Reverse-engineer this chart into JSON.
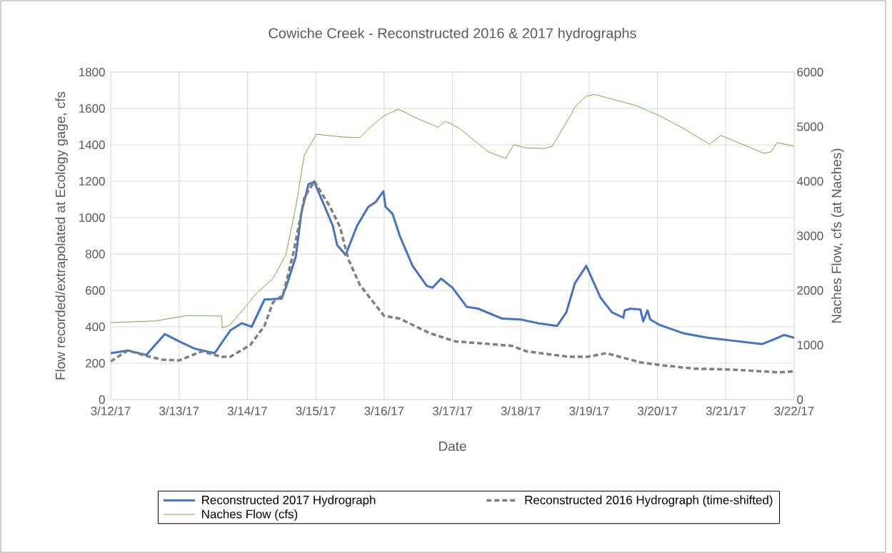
{
  "chart_data": {
    "type": "line",
    "title": "Cowiche Creek - Reconstructed 2016 & 2017 hydrographs",
    "xlabel": "Date",
    "ylabel": "Flow recorded/extrapolated at Ecology gage, cfs",
    "y2label": "Naches Flow, cfs (at Naches)",
    "xlim": [
      "2017-03-12",
      "2017-03-22"
    ],
    "xticks": [
      {
        "value": "2017-03-12",
        "label": "3/12/17"
      },
      {
        "value": "2017-03-13",
        "label": "3/13/17"
      },
      {
        "value": "2017-03-14",
        "label": "3/14/17"
      },
      {
        "value": "2017-03-15",
        "label": "3/15/17"
      },
      {
        "value": "2017-03-16",
        "label": "3/16/17"
      },
      {
        "value": "2017-03-17",
        "label": "3/17/17"
      },
      {
        "value": "2017-03-18",
        "label": "3/18/17"
      },
      {
        "value": "2017-03-19",
        "label": "3/19/17"
      },
      {
        "value": "2017-03-20",
        "label": "3/20/17"
      },
      {
        "value": "2017-03-21",
        "label": "3/21/17"
      },
      {
        "value": "2017-03-22",
        "label": "3/22/17"
      }
    ],
    "ylim": [
      0,
      1800
    ],
    "yticks": [
      0,
      200,
      400,
      600,
      800,
      1000,
      1200,
      1400,
      1600,
      1800
    ],
    "y2lim": [
      0,
      6000
    ],
    "y2ticks": [
      0,
      1000,
      2000,
      3000,
      4000,
      5000,
      6000
    ],
    "grid": true,
    "legend": "bottom",
    "series": [
      {
        "name": "Reconstructed 2017 Hydrograph",
        "color": "#4472c4",
        "line_style": "solid",
        "x": [
          "2017-03-12T00:00",
          "2017-03-12T06:00",
          "2017-03-12T12:30",
          "2017-03-12T19:00",
          "2017-03-13T00:00",
          "2017-03-13T05:30",
          "2017-03-13T12:30",
          "2017-03-13T18:00",
          "2017-03-13T22:00",
          "2017-03-14T01:30",
          "2017-03-14T06:00",
          "2017-03-14T12:00",
          "2017-03-14T13:30",
          "2017-03-14T17:00",
          "2017-03-14T19:00",
          "2017-03-14T21:30",
          "2017-03-14T23:30",
          "2017-03-15T02:30",
          "2017-03-15T06:00",
          "2017-03-15T07:30",
          "2017-03-15T10:30",
          "2017-03-15T14:30",
          "2017-03-15T18:30",
          "2017-03-15T21:00",
          "2017-03-15T23:45",
          "2017-03-16T00:30",
          "2017-03-16T03:00",
          "2017-03-16T05:30",
          "2017-03-16T10:00",
          "2017-03-16T15:00",
          "2017-03-16T17:00",
          "2017-03-16T20:00",
          "2017-03-17T00:00",
          "2017-03-17T05:00",
          "2017-03-17T09:00",
          "2017-03-17T17:30",
          "2017-03-18T00:00",
          "2017-03-18T06:00",
          "2017-03-18T12:45",
          "2017-03-18T16:00",
          "2017-03-18T19:00",
          "2017-03-18T23:00",
          "2017-03-19T04:00",
          "2017-03-19T08:00",
          "2017-03-19T12:00",
          "2017-03-19T12:30",
          "2017-03-19T14:30",
          "2017-03-19T18:00",
          "2017-03-19T19:00",
          "2017-03-19T20:30",
          "2017-03-19T21:30",
          "2017-03-20T00:45",
          "2017-03-20T09:00",
          "2017-03-20T17:30",
          "2017-03-21T01:45",
          "2017-03-21T12:45",
          "2017-03-21T16:00",
          "2017-03-21T20:30",
          "2017-03-22T00:00"
        ],
        "values": [
          255,
          270,
          245,
          360,
          320,
          280,
          255,
          380,
          420,
          400,
          550,
          555,
          615,
          785,
          1030,
          1185,
          1195,
          1085,
          955,
          850,
          795,
          955,
          1060,
          1085,
          1145,
          1060,
          1020,
          900,
          735,
          625,
          615,
          665,
          615,
          510,
          500,
          445,
          440,
          420,
          405,
          480,
          640,
          735,
          560,
          480,
          450,
          490,
          500,
          495,
          430,
          490,
          440,
          410,
          365,
          340,
          325,
          305,
          325,
          355,
          340
        ]
      },
      {
        "name": "Reconstructed 2016 Hydrograph (time-shifted)",
        "color": "#7f7f7f",
        "line_style": "dashed",
        "x": [
          "2017-03-12T00:00",
          "2017-03-12T06:00",
          "2017-03-12T12:30",
          "2017-03-12T18:00",
          "2017-03-13T00:00",
          "2017-03-13T08:00",
          "2017-03-13T15:00",
          "2017-03-13T18:00",
          "2017-03-14T01:00",
          "2017-03-14T06:00",
          "2017-03-14T09:00",
          "2017-03-14T12:30",
          "2017-03-14T16:00",
          "2017-03-14T20:00",
          "2017-03-14T23:30",
          "2017-03-15T05:00",
          "2017-03-15T08:30",
          "2017-03-15T11:30",
          "2017-03-15T15:30",
          "2017-03-16T00:00",
          "2017-03-16T05:30",
          "2017-03-16T16:00",
          "2017-03-17T01:00",
          "2017-03-17T13:30",
          "2017-03-17T21:00",
          "2017-03-18T02:00",
          "2017-03-18T17:00",
          "2017-03-18T23:30",
          "2017-03-19T06:00",
          "2017-03-19T18:00",
          "2017-03-20T00:45",
          "2017-03-20T13:00",
          "2017-03-21T01:45",
          "2017-03-21T18:30",
          "2017-03-22T00:00"
        ],
        "values": [
          210,
          270,
          240,
          220,
          215,
          265,
          235,
          235,
          300,
          405,
          535,
          575,
          795,
          1110,
          1200,
          1060,
          950,
          770,
          630,
          460,
          445,
          365,
          320,
          305,
          295,
          265,
          235,
          235,
          255,
          205,
          190,
          170,
          165,
          150,
          155
        ]
      },
      {
        "name": "Naches Flow (cfs)",
        "color": "#70ad47",
        "line_style": "solid",
        "axis": "y2",
        "x": [
          "2017-03-12T00:00",
          "2017-03-12T15:30",
          "2017-03-13T03:00",
          "2017-03-13T15:00",
          "2017-03-13T15:10",
          "2017-03-13T18:00",
          "2017-03-14T03:30",
          "2017-03-14T09:00",
          "2017-03-14T13:30",
          "2017-03-14T17:00",
          "2017-03-14T20:00",
          "2017-03-15T00:15",
          "2017-03-15T09:30",
          "2017-03-15T15:30",
          "2017-03-15T19:30",
          "2017-03-16T00:00",
          "2017-03-16T05:00",
          "2017-03-16T12:00",
          "2017-03-16T19:00",
          "2017-03-16T21:30",
          "2017-03-17T02:30",
          "2017-03-17T12:30",
          "2017-03-17T18:45",
          "2017-03-17T21:30",
          "2017-03-18T02:00",
          "2017-03-18T08:30",
          "2017-03-18T11:00",
          "2017-03-18T17:45",
          "2017-03-18T19:00",
          "2017-03-18T23:00",
          "2017-03-19T02:00",
          "2017-03-19T16:15",
          "2017-03-20T00:45",
          "2017-03-20T09:00",
          "2017-03-20T18:15",
          "2017-03-20T22:15",
          "2017-03-21T13:30",
          "2017-03-21T16:00",
          "2017-03-21T18:00",
          "2017-03-22T00:00"
        ],
        "values": [
          1410,
          1440,
          1540,
          1530,
          1310,
          1370,
          1960,
          2220,
          2650,
          3530,
          4480,
          4860,
          4810,
          4800,
          5010,
          5200,
          5320,
          5140,
          4990,
          5100,
          4970,
          4540,
          4420,
          4670,
          4610,
          4600,
          4640,
          5230,
          5360,
          5560,
          5590,
          5390,
          5200,
          4970,
          4680,
          4840,
          4510,
          4540,
          4710,
          4640
        ]
      }
    ]
  }
}
